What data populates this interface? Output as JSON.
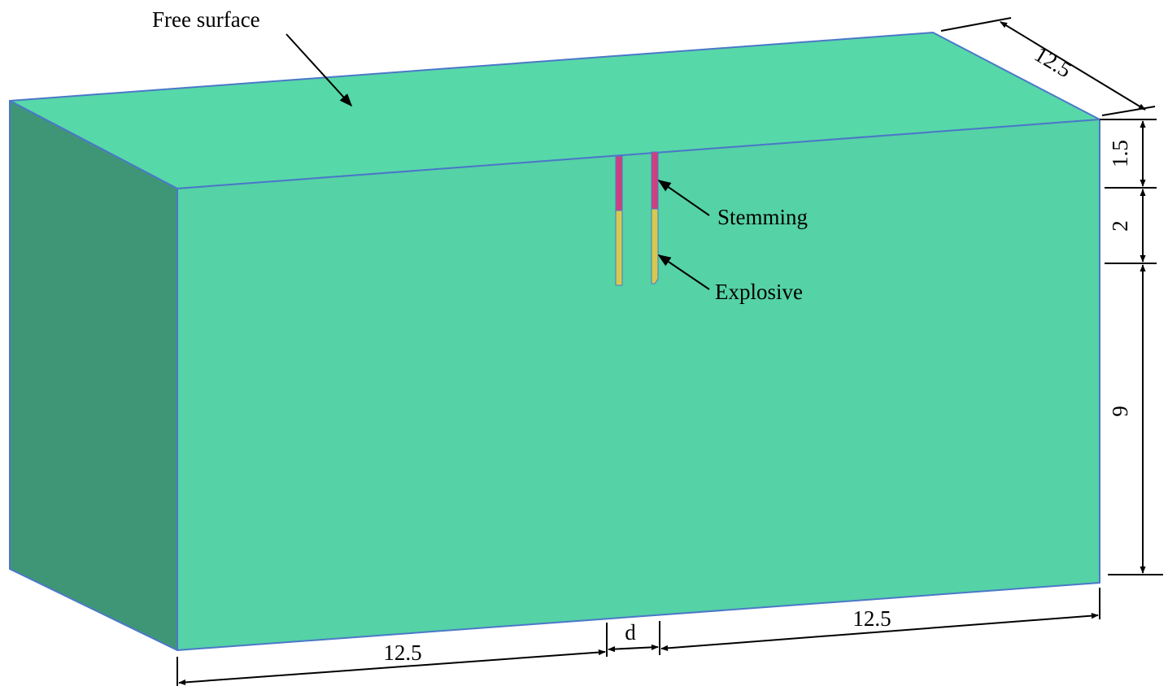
{
  "colors": {
    "top_face": "#57d8a8",
    "front_face": "#55d2a6",
    "side_face": "#3f9677",
    "edge": "#4b78c8",
    "stemming": "#cf3f7e",
    "explosive": "#d8c850",
    "line": "#000000"
  },
  "labels": {
    "free_surface": "Free surface",
    "stemming": "Stemming",
    "explosive": "Explosive"
  },
  "dimensions": {
    "depth": "12.5",
    "stemming_length": "1.5",
    "charge_length": "2",
    "bottom_height": "9",
    "left_length": "12.5",
    "spacing": "d",
    "right_length": "12.5"
  }
}
